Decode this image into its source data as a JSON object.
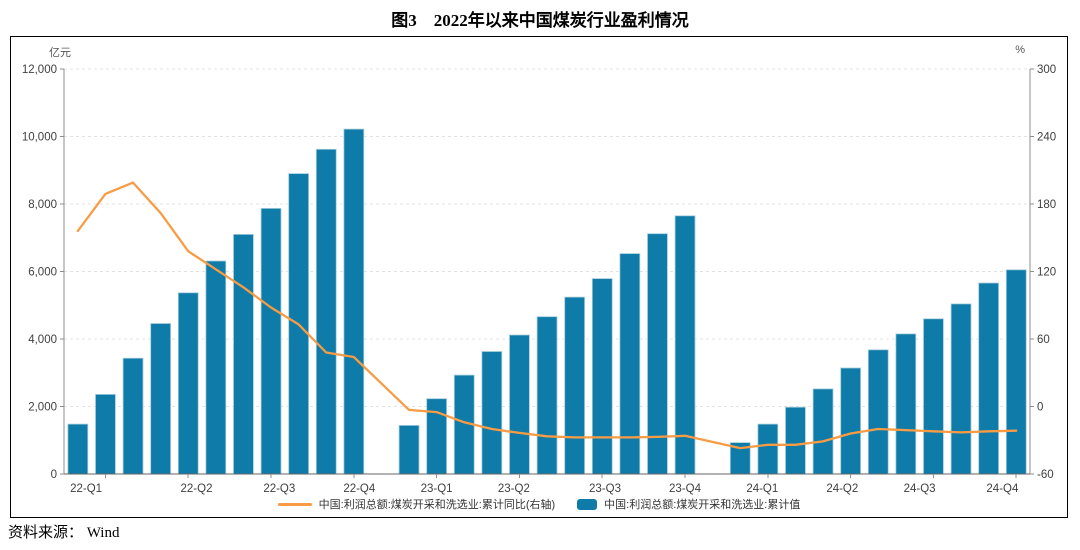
{
  "title": "图3　2022年以来中国煤炭行业盈利情况",
  "source_note": "资料来源： Wind",
  "axes": {
    "left": {
      "unit": "亿元",
      "tick_labels": [
        "12,000",
        "10,000",
        "8,000",
        "6,000",
        "4,000",
        "2,000",
        "0"
      ]
    },
    "right": {
      "unit": "%",
      "tick_labels": [
        "300",
        "240",
        "180",
        "120",
        "60",
        "0",
        "-60"
      ]
    }
  },
  "legend": {
    "line_label": "中国:利润总额:煤炭开采和洗选业:累计同比(右轴)",
    "bar_label": "中国:利润总额:煤炭开采和洗选业:累计值"
  },
  "colors": {
    "bar": "#0F7BA8",
    "bar_border": "#A6CCDD",
    "line": "#F79C44",
    "grid": "#E3E3E3",
    "axis": "#8C8C8C",
    "tick_text": "#404040"
  },
  "chart_data": {
    "type": "bar",
    "combo": "monthly cumulative bars (left axis, 亿元) + cumulative YoY line (right axis, %)",
    "x_tick_labels": [
      "22-Q1",
      "22-Q2",
      "22-Q3",
      "22-Q4",
      "23-Q1",
      "23-Q2",
      "23-Q3",
      "23-Q4",
      "24-Q1",
      "24-Q2",
      "24-Q3",
      "24-Q4"
    ],
    "months": [
      "2022-02",
      "2022-03",
      "2022-04",
      "2022-05",
      "2022-06",
      "2022-07",
      "2022-08",
      "2022-09",
      "2022-10",
      "2022-11",
      "2022-12",
      "2023-02",
      "2023-03",
      "2023-04",
      "2023-05",
      "2023-06",
      "2023-07",
      "2023-08",
      "2023-09",
      "2023-10",
      "2023-11",
      "2023-12",
      "2024-02",
      "2024-03",
      "2024-04",
      "2024-05",
      "2024-06",
      "2024-07",
      "2024-08",
      "2024-09",
      "2024-10",
      "2024-11",
      "2024-12"
    ],
    "series": [
      {
        "name": "中国:利润总额:煤炭开采和洗选业:累计值",
        "type": "bar",
        "axis": "left",
        "unit": "亿元",
        "values": [
          1480,
          2360,
          3430,
          4460,
          5370,
          6310,
          7100,
          7870,
          8900,
          9620,
          10220,
          1440,
          2230,
          2930,
          3630,
          4120,
          4660,
          5240,
          5790,
          6530,
          7120,
          7650,
          930,
          1480,
          1980,
          2520,
          3140,
          3680,
          4150,
          4600,
          5040,
          5660,
          6050
        ]
      },
      {
        "name": "中国:利润总额:煤炭开采和洗选业:累计同比(右轴)",
        "type": "line",
        "axis": "right",
        "unit": "%",
        "values": [
          156,
          189,
          199,
          172,
          138,
          122,
          106,
          88,
          73,
          48,
          44,
          -3,
          -5,
          -14,
          -20,
          -23.5,
          -26.5,
          -27.5,
          -27.5,
          -27.5,
          -27,
          -26,
          -37,
          -34,
          -34,
          -31,
          -24,
          -20,
          -21,
          -22,
          -23,
          -22,
          -21.5
        ]
      }
    ],
    "left_ylim": [
      0,
      12000
    ],
    "right_ylim": [
      -60,
      300
    ],
    "grid": "dashed horizontal gridlines at every left-axis tick",
    "legend_position": "bottom center"
  }
}
